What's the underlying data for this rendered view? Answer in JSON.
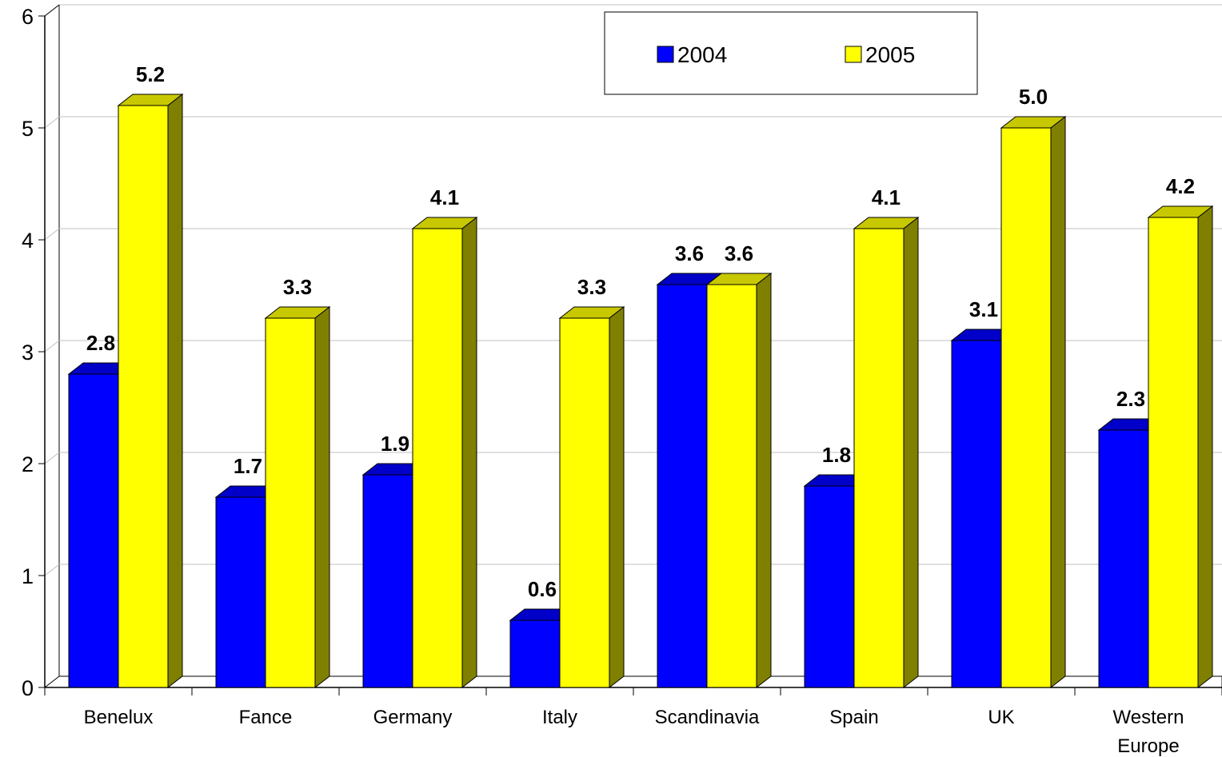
{
  "chart_data": {
    "type": "bar",
    "title": "",
    "xlabel": "",
    "ylabel": "",
    "ylim": [
      0,
      6
    ],
    "yticks": [
      "0",
      "1",
      "2",
      "3",
      "4",
      "5",
      "6"
    ],
    "grid": true,
    "legend_position": "top-right",
    "categories": [
      [
        "Benelux"
      ],
      [
        "Fance"
      ],
      [
        "Germany"
      ],
      [
        "Italy"
      ],
      [
        "Scandinavia"
      ],
      [
        "Spain"
      ],
      [
        "UK"
      ],
      [
        "Western",
        "Europe"
      ]
    ],
    "series": [
      {
        "name": "2004",
        "color": "#0000FF",
        "values": [
          2.8,
          1.7,
          1.9,
          0.6,
          3.6,
          1.8,
          3.1,
          2.3
        ],
        "labels": [
          "2.8",
          "1.7",
          "1.9",
          "0.6",
          "3.6",
          "1.8",
          "3.1",
          "2.3"
        ]
      },
      {
        "name": "2005",
        "color": "#FFFF00",
        "values": [
          5.2,
          3.3,
          4.1,
          3.3,
          3.6,
          4.1,
          5.0,
          4.2
        ],
        "labels": [
          "5.2",
          "3.3",
          "4.1",
          "3.3",
          "3.6",
          "4.1",
          "5.0",
          "4.2"
        ]
      }
    ]
  }
}
